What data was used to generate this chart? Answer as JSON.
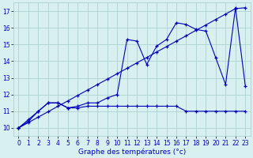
{
  "xlabel": "Graphe des températures (°c)",
  "background_color": "#d8f0f0",
  "grid_color": "#a8cccc",
  "line_color": "#0000bb",
  "hours": [
    0,
    1,
    2,
    3,
    4,
    5,
    6,
    7,
    8,
    9,
    10,
    11,
    12,
    13,
    14,
    15,
    16,
    17,
    18,
    19,
    20,
    21,
    22,
    23
  ],
  "curve_jagged": [
    10.0,
    10.5,
    11.0,
    11.5,
    11.5,
    11.2,
    11.3,
    11.5,
    11.5,
    11.8,
    12.0,
    15.3,
    15.2,
    13.8,
    14.9,
    15.3,
    16.3,
    16.2,
    15.9,
    15.8,
    14.2,
    12.6,
    17.2,
    12.5
  ],
  "curve_flat": [
    10.0,
    10.4,
    11.0,
    11.5,
    11.5,
    11.2,
    11.2,
    11.3,
    11.3,
    11.3,
    11.3,
    11.3,
    11.3,
    11.3,
    11.3,
    11.3,
    11.3,
    11.0,
    11.0,
    11.0,
    11.0,
    11.0,
    11.0,
    11.0
  ],
  "curve_linear": [
    10.0,
    10.32,
    10.65,
    10.97,
    11.3,
    11.62,
    11.95,
    12.27,
    12.6,
    12.92,
    13.25,
    13.57,
    13.9,
    14.22,
    14.55,
    14.87,
    15.2,
    15.52,
    15.85,
    16.17,
    16.5,
    16.82,
    17.15,
    17.2
  ],
  "ylim": [
    9.5,
    17.5
  ],
  "xlim": [
    -0.5,
    23.5
  ],
  "yticks": [
    10,
    11,
    12,
    13,
    14,
    15,
    16,
    17
  ],
  "xticks": [
    0,
    1,
    2,
    3,
    4,
    5,
    6,
    7,
    8,
    9,
    10,
    11,
    12,
    13,
    14,
    15,
    16,
    17,
    18,
    19,
    20,
    21,
    22,
    23
  ]
}
